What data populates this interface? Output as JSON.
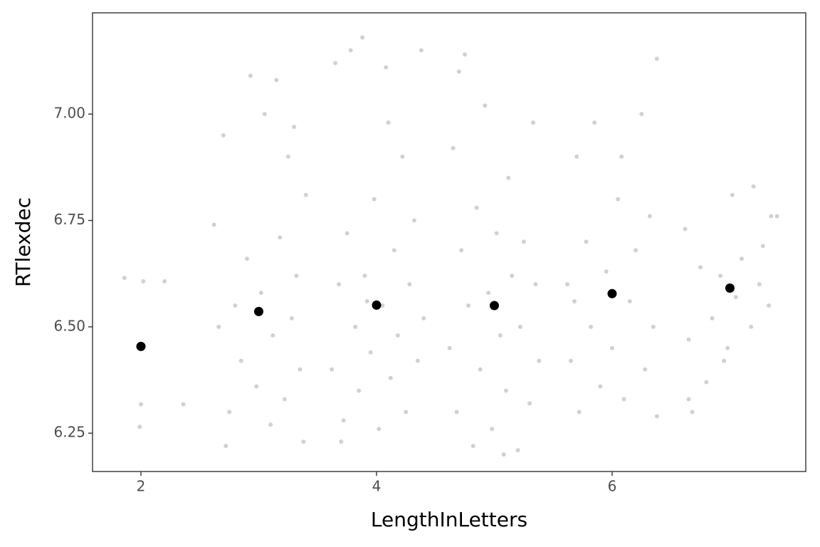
{
  "chart_data": {
    "type": "scatter",
    "xlabel": "LengthInLetters",
    "ylabel": "RTlexdec",
    "xlim": [
      1.589,
      7.644
    ],
    "ylim": [
      6.16,
      7.238
    ],
    "xticks": [
      2,
      4,
      6
    ],
    "yticks": [
      {
        "value": 6.25,
        "label": "6.25"
      },
      {
        "value": 6.5,
        "label": "6.50"
      },
      {
        "value": 6.75,
        "label": "6.75"
      },
      {
        "value": 7,
        "label": "7.00"
      }
    ],
    "grid": false,
    "series": [
      {
        "color": "#b3b3b3",
        "opacity": 0.6,
        "radius": 3,
        "x": [
          1.86,
          2.02,
          2.2,
          2.0,
          1.99,
          2.36,
          2.62,
          2.7,
          2.75,
          2.8,
          2.85,
          2.9,
          2.93,
          2.98,
          3.02,
          3.05,
          3.1,
          3.12,
          3.18,
          3.22,
          3.25,
          3.28,
          3.32,
          3.35,
          3.38,
          3.4,
          2.66,
          3.15,
          2.72,
          3.3,
          3.62,
          3.65,
          3.68,
          3.72,
          3.75,
          3.78,
          3.82,
          3.85,
          3.88,
          3.9,
          3.95,
          3.98,
          4.02,
          4.05,
          4.08,
          4.12,
          4.15,
          4.18,
          4.22,
          4.25,
          4.28,
          4.32,
          4.35,
          4.38,
          4.4,
          3.7,
          4.1,
          3.92,
          4.62,
          4.65,
          4.68,
          4.72,
          4.75,
          4.78,
          4.82,
          4.85,
          4.88,
          4.92,
          4.95,
          4.98,
          5.02,
          5.05,
          5.1,
          5.12,
          5.15,
          5.2,
          5.22,
          5.25,
          5.3,
          5.33,
          5.35,
          5.38,
          4.7,
          5.08,
          5.62,
          5.65,
          5.7,
          5.72,
          5.78,
          5.82,
          5.85,
          5.9,
          5.95,
          6.0,
          6.05,
          6.1,
          6.15,
          6.2,
          6.25,
          6.28,
          6.32,
          6.35,
          6.38,
          6.38,
          5.68,
          6.08,
          6.62,
          6.65,
          6.65,
          6.68,
          6.75,
          6.8,
          6.85,
          6.92,
          6.95,
          6.98,
          7.02,
          7.05,
          7.1,
          7.18,
          7.2,
          7.25,
          7.28,
          7.33,
          7.35,
          7.4
        ],
        "values": [
          6.615,
          6.607,
          6.607,
          6.318,
          6.265,
          6.318,
          6.74,
          6.95,
          6.3,
          6.55,
          6.42,
          6.66,
          7.09,
          6.36,
          6.58,
          7.0,
          6.27,
          6.48,
          6.71,
          6.33,
          6.9,
          6.52,
          6.62,
          6.4,
          6.23,
          6.81,
          6.5,
          7.08,
          6.22,
          6.97,
          6.4,
          7.12,
          6.6,
          6.28,
          6.72,
          7.15,
          6.5,
          6.35,
          7.18,
          6.62,
          6.44,
          6.8,
          6.26,
          6.55,
          7.11,
          6.38,
          6.68,
          6.48,
          6.9,
          6.3,
          6.6,
          6.75,
          6.42,
          7.15,
          6.52,
          6.23,
          6.98,
          6.56,
          6.45,
          6.92,
          6.3,
          6.68,
          7.14,
          6.55,
          6.22,
          6.78,
          6.4,
          7.02,
          6.58,
          6.26,
          6.72,
          6.48,
          6.35,
          6.85,
          6.62,
          6.21,
          6.5,
          6.7,
          6.32,
          6.98,
          6.6,
          6.42,
          7.1,
          6.2,
          6.6,
          6.42,
          6.9,
          6.3,
          6.7,
          6.5,
          6.98,
          6.36,
          6.63,
          6.45,
          6.8,
          6.33,
          6.56,
          6.68,
          7.0,
          6.4,
          6.76,
          6.5,
          6.29,
          7.13,
          6.56,
          6.9,
          6.73,
          6.47,
          6.33,
          6.3,
          6.64,
          6.37,
          6.52,
          6.62,
          6.42,
          6.45,
          6.81,
          6.57,
          6.66,
          6.5,
          6.83,
          6.6,
          6.69,
          6.55,
          6.76,
          6.76
        ]
      },
      {
        "color": "#000000",
        "opacity": 1,
        "radius": 6.5,
        "x": [
          2,
          3,
          4,
          5,
          6,
          7
        ],
        "values": [
          6.454,
          6.536,
          6.551,
          6.55,
          6.578,
          6.591
        ]
      }
    ]
  }
}
